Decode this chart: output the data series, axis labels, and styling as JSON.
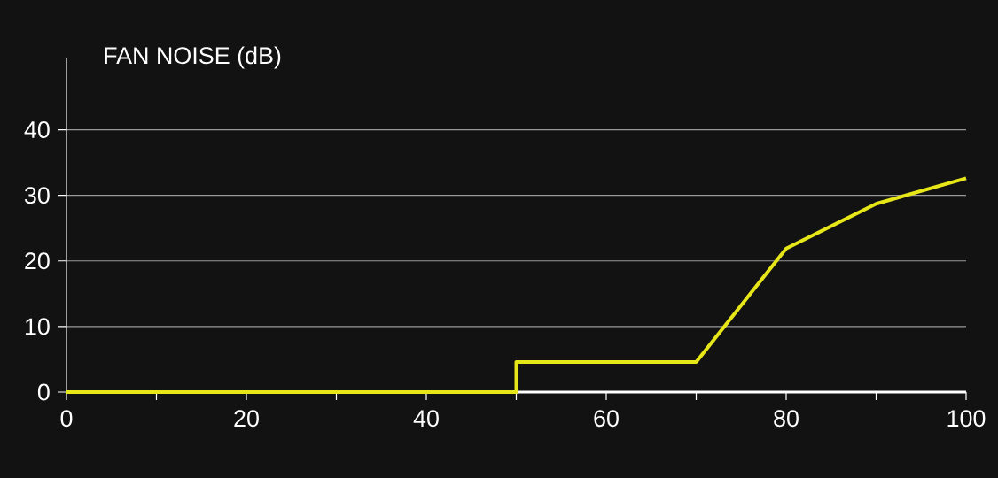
{
  "chart_data": {
    "type": "line",
    "ylabel": "FAN NOISE (dB)",
    "x": [
      0,
      50,
      50,
      70,
      80,
      90,
      100
    ],
    "series": [
      {
        "color": "#e6e619",
        "values": [
          0,
          0,
          4.6,
          4.6,
          21.9,
          28.7,
          32.6
        ]
      }
    ],
    "xlim": [
      0,
      100
    ],
    "ylim": [
      0,
      51
    ],
    "xticks": [
      0,
      {
        "value": 10,
        "label": null
      },
      20,
      {
        "value": 30,
        "label": null
      },
      40,
      {
        "value": 50,
        "label": null
      },
      60,
      {
        "value": 70,
        "label": null
      },
      80,
      {
        "value": 90,
        "label": null
      },
      100
    ],
    "yticks": [
      0,
      10,
      20,
      30,
      40
    ],
    "grid": "y",
    "marker": "none",
    "line_style": "solid"
  }
}
